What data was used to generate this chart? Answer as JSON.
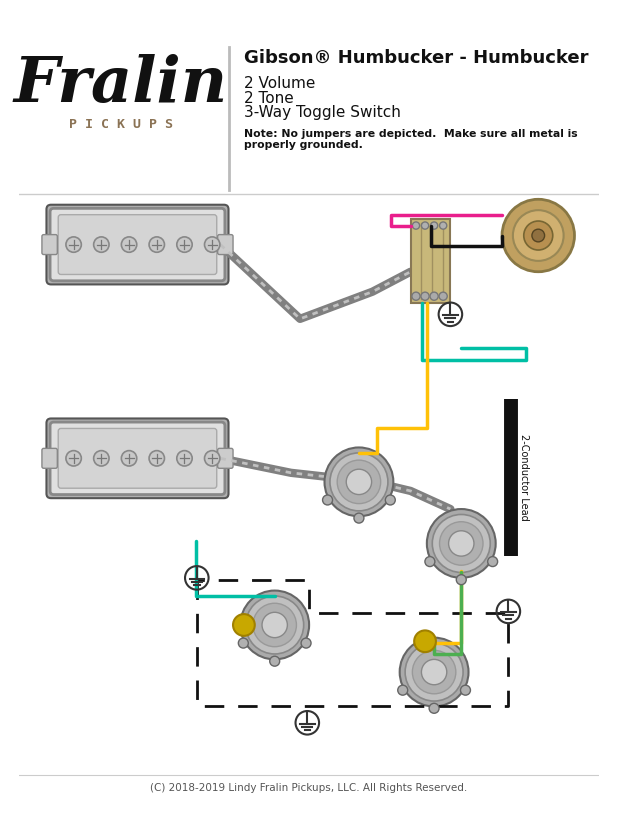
{
  "bg_color": "#ffffff",
  "title_line1": "Gibson® Humbucker - Humbucker",
  "note": "Note: No jumpers are depicted.  Make sure all metal is\nproperly grounded.",
  "copyright": "(C) 2018-2019 Lindy Fralin Pickups, LLC. All Rights Reserved.",
  "fralin_script": "Fralin",
  "pickups_text": "P I C K U P S",
  "pickups_color": "#8B7355",
  "wire_pink": "#E91E8C",
  "wire_teal": "#00BFA5",
  "wire_yellow": "#FFC107",
  "wire_black": "#111111",
  "wire_gray": "#888888",
  "wire_green": "#4CAF50",
  "wire_cyan": "#00BCD4",
  "pickup_fill": "#d8d8d8",
  "pot_fill": "#bbbbbb",
  "switch_fill": "#c8b87a",
  "jack_fill": "#c8a870",
  "cap_color": "#c8a800"
}
